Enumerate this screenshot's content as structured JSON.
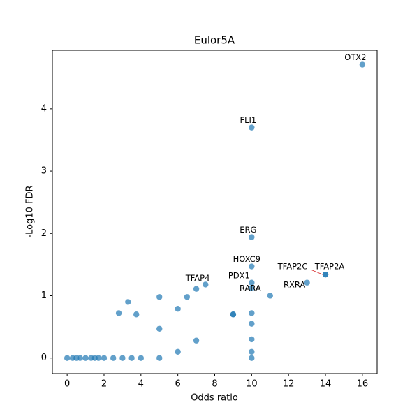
{
  "chart_data": {
    "type": "scatter",
    "title": "Eulor5A",
    "x_label": "Odds ratio",
    "y_label": "-Log10 FDR",
    "color": "#1f77b4",
    "x": [
      16,
      10,
      10,
      10,
      10,
      10,
      14,
      14,
      13,
      7,
      7.5,
      11,
      6.5,
      5,
      3.3,
      2.8,
      3.75,
      6,
      5,
      9,
      10,
      10,
      10,
      10,
      10,
      7,
      6,
      0,
      0.3,
      0.5,
      0.7,
      1,
      1.3,
      1.5,
      1.7,
      2,
      2.5,
      3,
      3.5,
      4,
      5,
      9
    ],
    "y": [
      4.71,
      3.7,
      1.94,
      1.47,
      1.21,
      1.12,
      1.34,
      1.34,
      1.21,
      1.11,
      1.18,
      1.0,
      0.98,
      0.98,
      0.9,
      0.72,
      0.7,
      0.79,
      0.47,
      0.7,
      0.72,
      0.55,
      0.3,
      0.1,
      0,
      0.28,
      0.1,
      0,
      0,
      0,
      0,
      0,
      0,
      0,
      0,
      0,
      0,
      0,
      0,
      0,
      0,
      0.7
    ],
    "point_labels": [
      "OTX2",
      "FLI1",
      "ERG",
      "HOXC9",
      "PDX1",
      "RARA",
      "TFAP2C",
      "TFAP2A",
      "RXRA",
      "TFAP4",
      null,
      null,
      null,
      null,
      null,
      null,
      null,
      null,
      null,
      null,
      null,
      null,
      null,
      null,
      null,
      null,
      null,
      null,
      null,
      null,
      null,
      null,
      null,
      null,
      null,
      null,
      null,
      null,
      null,
      null,
      null,
      null
    ],
    "xlim": [
      -0.8,
      16.8
    ],
    "ylim": [
      -0.25,
      4.94
    ],
    "xticks": [
      0,
      2,
      4,
      6,
      8,
      10,
      12,
      14,
      16
    ],
    "yticks": [
      0,
      1,
      2,
      3,
      4
    ]
  }
}
